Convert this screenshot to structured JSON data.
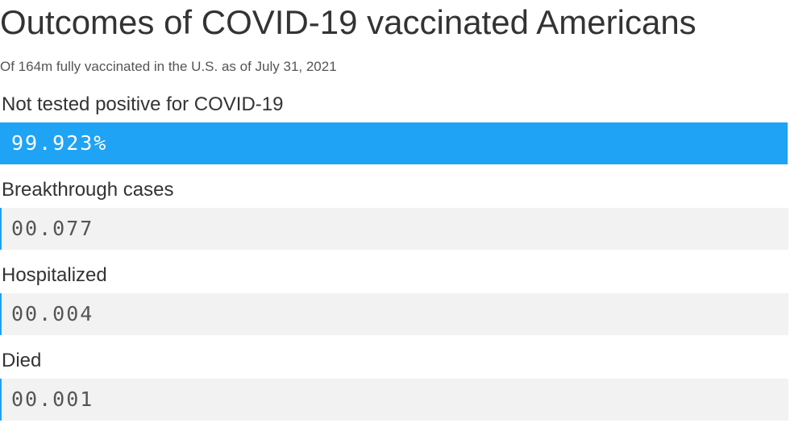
{
  "chart_data": {
    "type": "bar",
    "orientation": "horizontal",
    "title": "Outcomes of COVID-19 vaccinated Americans",
    "subtitle": "Of 164m fully vaccinated in the U.S. as of July 31, 2021",
    "categories": [
      "Not tested positive for COVID-19",
      "Breakthrough cases",
      "Hospitalized",
      "Died"
    ],
    "values": [
      99.923,
      0.077,
      0.004,
      0.001
    ],
    "value_labels": [
      "99.923%",
      "00.077",
      "00.004",
      "00.001"
    ],
    "xlim": [
      0,
      100
    ],
    "grid": false,
    "legend": "none"
  },
  "colors": {
    "bar": "#1fa3f5",
    "track": "#f2f2f2",
    "value_on_bar": "#ffffff",
    "value_on_track": "#555555"
  }
}
